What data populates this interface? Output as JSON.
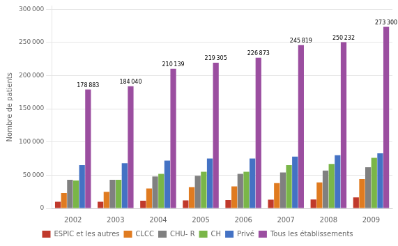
{
  "chart_data": {
    "type": "bar",
    "ylabel": "Nombre de patients",
    "categories": [
      "2002",
      "2003",
      "2004",
      "2005",
      "2006",
      "2007",
      "2008",
      "2009"
    ],
    "series": [
      {
        "name": "ESPIC et les autres",
        "color": "#c0392b",
        "values": [
          10000,
          10000,
          11500,
          12000,
          12500,
          13000,
          13500,
          16500
        ]
      },
      {
        "name": "CLCC",
        "color": "#e07b20",
        "values": [
          23000,
          25000,
          30000,
          32000,
          33000,
          38000,
          39000,
          44000
        ]
      },
      {
        "name": "CHU- R",
        "color": "#808080",
        "values": [
          43000,
          43000,
          48000,
          49000,
          52000,
          54000,
          57000,
          62000
        ]
      },
      {
        "name": "CH",
        "color": "#7ab648",
        "values": [
          42000,
          43000,
          52000,
          55000,
          55000,
          65000,
          67000,
          76000
        ]
      },
      {
        "name": "Privé",
        "color": "#4472c4",
        "values": [
          65000,
          68000,
          72000,
          75000,
          75000,
          78000,
          80000,
          83000
        ]
      },
      {
        "name": "Tous les établissements",
        "color": "#9b4ea0",
        "values": [
          178883,
          184040,
          210139,
          219305,
          226873,
          245819,
          250232,
          273300
        ],
        "data_labels": true,
        "value_labels": [
          "178 883",
          "184 040",
          "210 139",
          "219 305",
          "226 873",
          "245 819",
          "250 232",
          "273 300"
        ]
      }
    ],
    "ylim": [
      0,
      305000
    ],
    "yticks": [
      0,
      {
        "value": 50000,
        "label": "50 000"
      },
      {
        "value": 100000,
        "label": "100 000"
      },
      {
        "value": 150000,
        "label": "150 000"
      },
      {
        "value": 200000,
        "label": "200 000"
      },
      {
        "value": 250000,
        "label": "250 000"
      },
      {
        "value": 300000,
        "label": "300 000"
      }
    ],
    "grid": true,
    "legend": "bottom"
  }
}
